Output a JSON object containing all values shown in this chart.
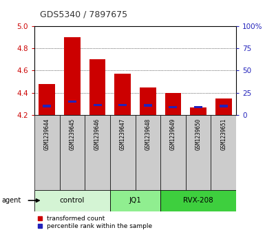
{
  "title": "GDS5340 / 7897675",
  "samples": [
    "GSM1239644",
    "GSM1239645",
    "GSM1239646",
    "GSM1239647",
    "GSM1239648",
    "GSM1239649",
    "GSM1239650",
    "GSM1239651"
  ],
  "red_values": [
    4.48,
    4.9,
    4.7,
    4.57,
    4.45,
    4.4,
    4.27,
    4.35
  ],
  "blue_values": [
    4.28,
    4.32,
    4.29,
    4.29,
    4.285,
    4.27,
    4.27,
    4.28
  ],
  "ymin": 4.2,
  "ymax": 5.0,
  "yticks": [
    4.2,
    4.4,
    4.6,
    4.8,
    5.0
  ],
  "y2ticks": [
    0,
    25,
    50,
    75,
    100
  ],
  "y2labels": [
    "0",
    "25",
    "50",
    "75",
    "100%"
  ],
  "groups": [
    {
      "label": "control",
      "start": 0,
      "end": 2,
      "color": "#d4f4d4"
    },
    {
      "label": "JQ1",
      "start": 3,
      "end": 4,
      "color": "#90ee90"
    },
    {
      "label": "RVX-208",
      "start": 5,
      "end": 7,
      "color": "#3ecf3e"
    }
  ],
  "bar_width": 0.65,
  "bar_color": "#cc0000",
  "blue_color": "#2222bb",
  "bg_color": "#cccccc",
  "plot_bg": "#ffffff",
  "legend_red": "transformed count",
  "legend_blue": "percentile rank within the sample",
  "agent_label": "agent",
  "title_color": "#333333",
  "left_tick_color": "#cc0000",
  "right_tick_color": "#2222bb"
}
